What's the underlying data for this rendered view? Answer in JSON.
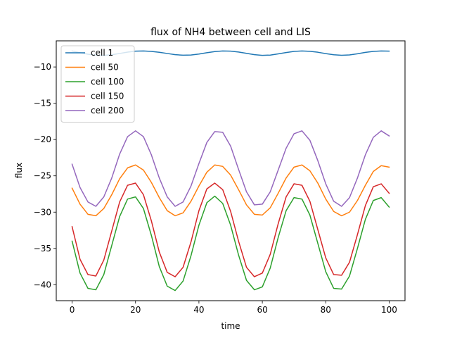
{
  "chart_data": {
    "type": "line",
    "title": "flux of NH4 between cell and LIS",
    "xlabel": "time",
    "ylabel": "flux",
    "xlim": [
      -5,
      105
    ],
    "ylim": [
      -42.2,
      -6.4
    ],
    "xticks": [
      0,
      20,
      40,
      60,
      80,
      100
    ],
    "xtick_labels": [
      "0",
      "20",
      "40",
      "60",
      "80",
      "100"
    ],
    "yticks": [
      -10,
      -15,
      -20,
      -25,
      -30,
      -35,
      -40
    ],
    "ytick_labels": [
      "−10",
      "−15",
      "−20",
      "−25",
      "−30",
      "−35",
      "−40"
    ],
    "grid": false,
    "legend_position": "upper-left",
    "x": [
      0,
      2.5,
      5,
      7.5,
      10,
      12.5,
      15,
      17.5,
      20,
      22.5,
      25,
      27.5,
      30,
      32.5,
      35,
      37.5,
      40,
      42.5,
      45,
      47.5,
      50,
      52.5,
      55,
      57.5,
      60,
      62.5,
      65,
      67.5,
      70,
      72.5,
      75,
      77.5,
      80,
      82.5,
      85,
      87.5,
      90,
      92.5,
      95,
      97.5,
      100
    ],
    "series": [
      {
        "name": "cell 1",
        "color": "#1f77b4",
        "values": [
          -7.8,
          -8.02,
          -8.24,
          -8.38,
          -8.4,
          -8.32,
          -8.14,
          -7.95,
          -7.82,
          -7.8,
          -7.85,
          -7.98,
          -8.14,
          -8.3,
          -8.38,
          -8.35,
          -8.22,
          -8.04,
          -7.88,
          -7.8,
          -7.82,
          -7.94,
          -8.12,
          -8.3,
          -8.4,
          -8.36,
          -8.2,
          -8.01,
          -7.86,
          -7.8,
          -7.84,
          -7.97,
          -8.16,
          -8.32,
          -8.39,
          -8.34,
          -8.18,
          -7.99,
          -7.85,
          -7.8,
          -7.82
        ]
      },
      {
        "name": "cell 50",
        "color": "#ff7f0e",
        "values": [
          -26.7,
          -28.9,
          -30.3,
          -30.5,
          -29.5,
          -27.6,
          -25.4,
          -23.9,
          -23.5,
          -24.2,
          -25.9,
          -28.0,
          -29.8,
          -30.5,
          -30.1,
          -28.5,
          -26.4,
          -24.5,
          -23.5,
          -23.7,
          -24.9,
          -26.9,
          -29.0,
          -30.3,
          -30.4,
          -29.4,
          -27.4,
          -25.3,
          -23.8,
          -23.5,
          -24.3,
          -26.0,
          -28.2,
          -29.9,
          -30.5,
          -30.0,
          -28.4,
          -26.3,
          -24.4,
          -23.6,
          -23.8
        ]
      },
      {
        "name": "cell 100",
        "color": "#2ca02c",
        "values": [
          -34.0,
          -38.4,
          -40.5,
          -40.7,
          -38.6,
          -34.6,
          -30.6,
          -28.2,
          -27.9,
          -29.5,
          -33.2,
          -37.5,
          -40.2,
          -40.8,
          -39.5,
          -36.0,
          -31.8,
          -28.7,
          -27.8,
          -28.8,
          -31.8,
          -35.9,
          -39.4,
          -40.7,
          -40.3,
          -37.7,
          -33.5,
          -29.8,
          -28.0,
          -28.2,
          -30.4,
          -34.3,
          -38.2,
          -40.5,
          -40.6,
          -38.8,
          -35.0,
          -31.0,
          -28.4,
          -28.0,
          -29.3
        ]
      },
      {
        "name": "cell 150",
        "color": "#d62728",
        "values": [
          -32.0,
          -36.5,
          -38.6,
          -38.8,
          -36.6,
          -32.6,
          -28.6,
          -26.3,
          -26.0,
          -27.6,
          -31.2,
          -35.5,
          -38.3,
          -38.9,
          -37.6,
          -34.1,
          -29.8,
          -26.8,
          -26.0,
          -26.9,
          -29.9,
          -34.0,
          -37.6,
          -38.9,
          -38.4,
          -35.8,
          -31.6,
          -27.9,
          -26.1,
          -26.3,
          -28.5,
          -32.4,
          -36.3,
          -38.6,
          -38.7,
          -36.9,
          -33.1,
          -29.1,
          -26.5,
          -26.1,
          -27.4
        ]
      },
      {
        "name": "cell 200",
        "color": "#9467bd",
        "values": [
          -23.4,
          -26.6,
          -28.6,
          -29.2,
          -27.9,
          -25.3,
          -22.0,
          -19.6,
          -18.8,
          -19.6,
          -22.1,
          -25.3,
          -27.9,
          -29.2,
          -28.6,
          -26.4,
          -23.3,
          -20.4,
          -18.9,
          -19.0,
          -20.9,
          -24.1,
          -27.2,
          -29.0,
          -28.9,
          -27.2,
          -24.2,
          -21.2,
          -19.2,
          -18.8,
          -20.1,
          -22.9,
          -26.1,
          -28.5,
          -29.2,
          -28.0,
          -25.3,
          -22.1,
          -19.7,
          -18.8,
          -19.5
        ]
      }
    ]
  }
}
